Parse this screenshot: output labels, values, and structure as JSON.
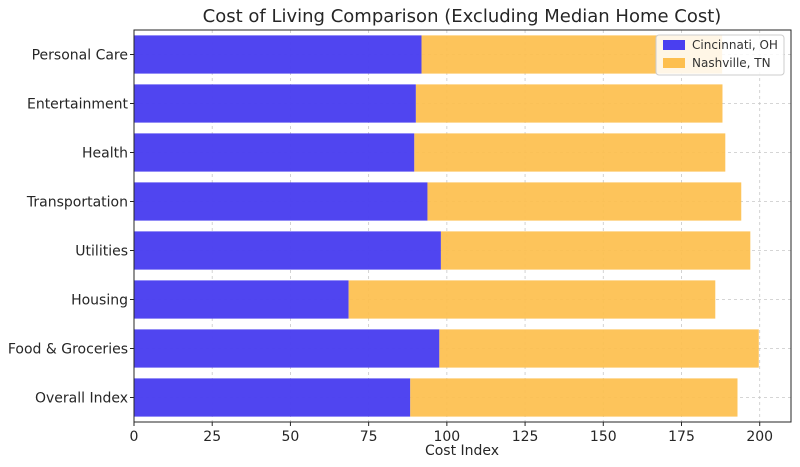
{
  "chart_data": {
    "type": "bar",
    "orientation": "horizontal",
    "stacked": true,
    "title": "Cost of Living Comparison (Excluding Median Home Cost)",
    "xlabel": "Cost Index",
    "ylabel": "",
    "xlim": [
      0,
      210
    ],
    "xticks": [
      0,
      25,
      50,
      75,
      100,
      125,
      150,
      175,
      200
    ],
    "grid": true,
    "legend_position": "top-right",
    "categories": [
      "Overall Index",
      "Food & Groceries",
      "Housing",
      "Utilities",
      "Transportation",
      "Health",
      "Entertainment",
      "Personal Care"
    ],
    "series": [
      {
        "name": "Cincinnati, OH",
        "color": "#4a3ff0",
        "values": [
          88.3,
          97.6,
          68.6,
          98.1,
          93.8,
          89.6,
          90.1,
          91.9
        ]
      },
      {
        "name": "Nashville, TN",
        "color": "#fdbf4f",
        "values": [
          104.6,
          102.1,
          117.2,
          98.9,
          100.3,
          99.4,
          98.0,
          96.1
        ]
      }
    ]
  }
}
